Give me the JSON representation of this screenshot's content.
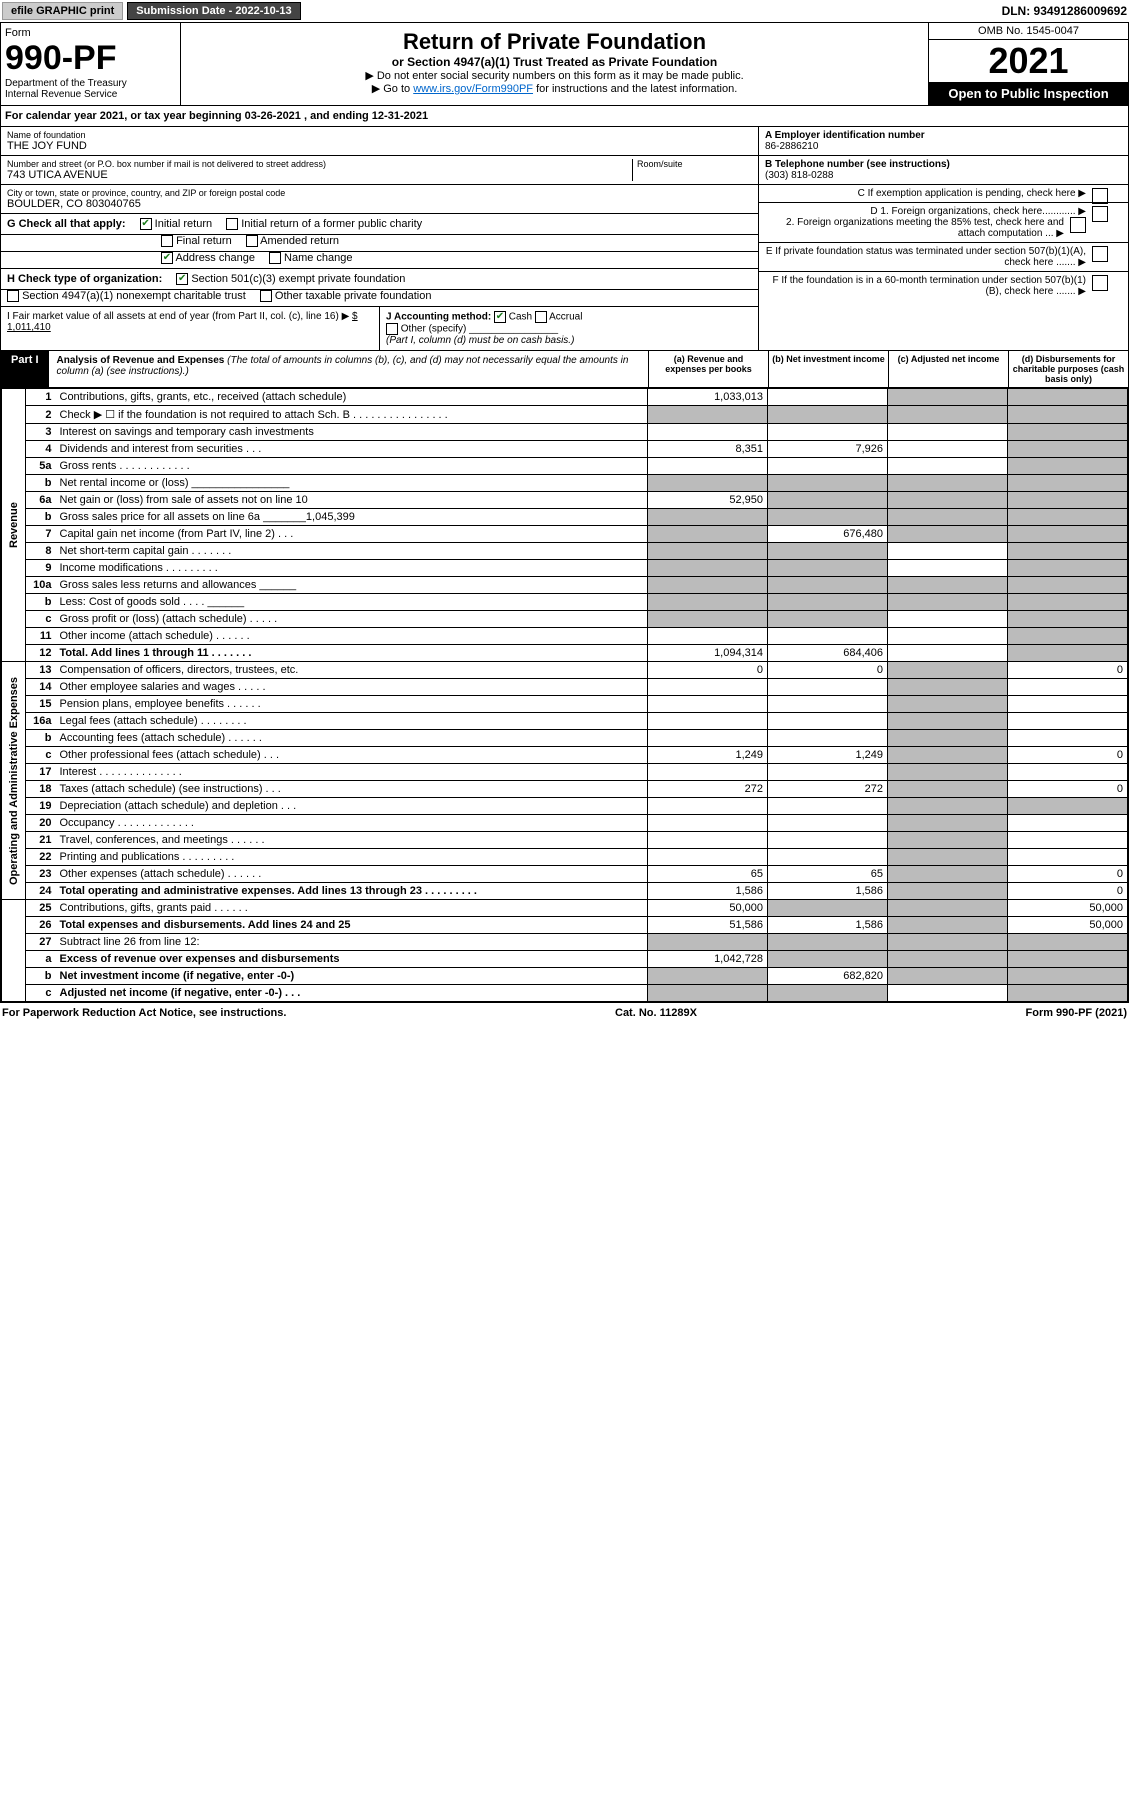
{
  "topbar": {
    "print": "efile GRAPHIC print",
    "subdate_label": "Submission Date - 2022-10-13",
    "dln": "DLN: 93491286009692"
  },
  "header": {
    "form_word": "Form",
    "form_num": "990-PF",
    "dept": "Department of the Treasury",
    "irs": "Internal Revenue Service",
    "title": "Return of Private Foundation",
    "subtitle": "or Section 4947(a)(1) Trust Treated as Private Foundation",
    "instr1": "▶ Do not enter social security numbers on this form as it may be made public.",
    "instr2_pre": "▶ Go to ",
    "instr2_link": "www.irs.gov/Form990PF",
    "instr2_post": " for instructions and the latest information.",
    "omb": "OMB No. 1545-0047",
    "year": "2021",
    "open_pub": "Open to Public Inspection"
  },
  "calendar": "For calendar year 2021, or tax year beginning 03-26-2021                                      , and ending 12-31-2021",
  "info": {
    "name_label": "Name of foundation",
    "name": "THE JOY FUND",
    "addr_label": "Number and street (or P.O. box number if mail is not delivered to street address)",
    "addr": "743 UTICA AVENUE",
    "room_label": "Room/suite",
    "city_label": "City or town, state or province, country, and ZIP or foreign postal code",
    "city": "BOULDER, CO  803040765",
    "A_label": "A Employer identification number",
    "A_val": "86-2886210",
    "B_label": "B Telephone number (see instructions)",
    "B_val": "(303) 818-0288",
    "C_label": "C If exemption application is pending, check here",
    "D1": "D 1. Foreign organizations, check here............",
    "D2": "2. Foreign organizations meeting the 85% test, check here and attach computation ...",
    "E": "E  If private foundation status was terminated under section 507(b)(1)(A), check here .......",
    "F": "F  If the foundation is in a 60-month termination under section 507(b)(1)(B), check here .......",
    "G_label": "G Check all that apply:",
    "G_initial": "Initial return",
    "G_initial_former": "Initial return of a former public charity",
    "G_final": "Final return",
    "G_amended": "Amended return",
    "G_addr": "Address change",
    "G_name": "Name change",
    "H_label": "H Check type of organization:",
    "H_501c3": "Section 501(c)(3) exempt private foundation",
    "H_4947": "Section 4947(a)(1) nonexempt charitable trust",
    "H_other": "Other taxable private foundation",
    "I_label": "I Fair market value of all assets at end of year (from Part II, col. (c), line 16) ▶",
    "I_val": "$  1,011,410",
    "J_label": "J Accounting method:",
    "J_cash": "Cash",
    "J_accrual": "Accrual",
    "J_other": "Other (specify)",
    "J_note": "(Part I, column (d) must be on cash basis.)"
  },
  "part1": {
    "label": "Part I",
    "title": "Analysis of Revenue and Expenses",
    "note": " (The total of amounts in columns (b), (c), and (d) may not necessarily equal the amounts in column (a) (see instructions).)",
    "col_a": "(a)  Revenue and expenses per books",
    "col_b": "(b)  Net investment income",
    "col_c": "(c)  Adjusted net income",
    "col_d": "(d)  Disbursements for charitable purposes (cash basis only)"
  },
  "side_rev": "Revenue",
  "side_exp": "Operating and Administrative Expenses",
  "rows": [
    {
      "n": "1",
      "d": "Contributions, gifts, grants, etc., received (attach schedule)",
      "a": "1,033,013",
      "b": "",
      "c": "sh",
      "dd": "sh"
    },
    {
      "n": "2",
      "d": "Check ▶ ☐ if the foundation is not required to attach Sch. B      .  .  .  .  .  .  .  .  .  .  .  .  .  .  .  .",
      "a": "sh",
      "b": "sh",
      "c": "sh",
      "dd": "sh"
    },
    {
      "n": "3",
      "d": "Interest on savings and temporary cash investments",
      "a": "",
      "b": "",
      "c": "",
      "dd": "sh"
    },
    {
      "n": "4",
      "d": "Dividends and interest from securities     .   .   .",
      "a": "8,351",
      "b": "7,926",
      "c": "",
      "dd": "sh"
    },
    {
      "n": "5a",
      "d": "Gross rents      .   .   .   .   .   .   .   .   .   .   .   .",
      "a": "",
      "b": "",
      "c": "",
      "dd": "sh"
    },
    {
      "n": "b",
      "d": "Net rental income or (loss)    ________________",
      "a": "sh",
      "b": "sh",
      "c": "sh",
      "dd": "sh"
    },
    {
      "n": "6a",
      "d": "Net gain or (loss) from sale of assets not on line 10",
      "a": "52,950",
      "b": "sh",
      "c": "sh",
      "dd": "sh"
    },
    {
      "n": "b",
      "d": "Gross sales price for all assets on line 6a _______1,045,399",
      "a": "sh",
      "b": "sh",
      "c": "sh",
      "dd": "sh"
    },
    {
      "n": "7",
      "d": "Capital gain net income (from Part IV, line 2)   .  .  .",
      "a": "sh",
      "b": "676,480",
      "c": "sh",
      "dd": "sh"
    },
    {
      "n": "8",
      "d": "Net short-term capital gain   .   .   .   .   .   .   .",
      "a": "sh",
      "b": "sh",
      "c": "",
      "dd": "sh"
    },
    {
      "n": "9",
      "d": "Income modifications  .   .   .   .   .   .   .   .   .",
      "a": "sh",
      "b": "sh",
      "c": "",
      "dd": "sh"
    },
    {
      "n": "10a",
      "d": "Gross sales less returns and allowances   ______",
      "a": "sh",
      "b": "sh",
      "c": "sh",
      "dd": "sh"
    },
    {
      "n": "b",
      "d": "Less: Cost of goods sold    .   .   .   .   ______",
      "a": "sh",
      "b": "sh",
      "c": "sh",
      "dd": "sh"
    },
    {
      "n": "c",
      "d": "Gross profit or (loss) (attach schedule)    .   .   .   .   .",
      "a": "sh",
      "b": "sh",
      "c": "",
      "dd": "sh"
    },
    {
      "n": "11",
      "d": "Other income (attach schedule)   .   .   .   .   .   .",
      "a": "",
      "b": "",
      "c": "",
      "dd": "sh"
    },
    {
      "n": "12",
      "d": "Total. Add lines 1 through 11   .   .   .   .   .   .   .",
      "a": "1,094,314",
      "b": "684,406",
      "c": "",
      "dd": "sh",
      "bold": true
    },
    {
      "n": "13",
      "d": "Compensation of officers, directors, trustees, etc.",
      "a": "0",
      "b": "0",
      "c": "sh",
      "dd": "0"
    },
    {
      "n": "14",
      "d": "Other employee salaries and wages   .   .   .   .   .",
      "a": "",
      "b": "",
      "c": "sh",
      "dd": ""
    },
    {
      "n": "15",
      "d": "Pension plans, employee benefits  .   .   .   .   .   .",
      "a": "",
      "b": "",
      "c": "sh",
      "dd": ""
    },
    {
      "n": "16a",
      "d": "Legal fees (attach schedule)  .   .   .   .   .   .   .   .",
      "a": "",
      "b": "",
      "c": "sh",
      "dd": ""
    },
    {
      "n": "b",
      "d": "Accounting fees (attach schedule)  .   .   .   .   .   .",
      "a": "",
      "b": "",
      "c": "sh",
      "dd": ""
    },
    {
      "n": "c",
      "d": "Other professional fees (attach schedule)   .   .   .",
      "a": "1,249",
      "b": "1,249",
      "c": "sh",
      "dd": "0"
    },
    {
      "n": "17",
      "d": "Interest  .   .   .   .   .   .   .   .   .   .   .   .   .   .",
      "a": "",
      "b": "",
      "c": "sh",
      "dd": ""
    },
    {
      "n": "18",
      "d": "Taxes (attach schedule) (see instructions)   .   .   .",
      "a": "272",
      "b": "272",
      "c": "sh",
      "dd": "0"
    },
    {
      "n": "19",
      "d": "Depreciation (attach schedule) and depletion   .   .   .",
      "a": "",
      "b": "",
      "c": "sh",
      "dd": "sh"
    },
    {
      "n": "20",
      "d": "Occupancy  .   .   .   .   .   .   .   .   .   .   .   .   .",
      "a": "",
      "b": "",
      "c": "sh",
      "dd": ""
    },
    {
      "n": "21",
      "d": "Travel, conferences, and meetings  .   .   .   .   .   .",
      "a": "",
      "b": "",
      "c": "sh",
      "dd": ""
    },
    {
      "n": "22",
      "d": "Printing and publications  .   .   .   .   .   .   .   .   .",
      "a": "",
      "b": "",
      "c": "sh",
      "dd": ""
    },
    {
      "n": "23",
      "d": "Other expenses (attach schedule)  .   .   .   .   .   .",
      "a": "65",
      "b": "65",
      "c": "sh",
      "dd": "0"
    },
    {
      "n": "24",
      "d": "Total operating and administrative expenses. Add lines 13 through 23   .   .   .   .   .   .   .   .   .",
      "a": "1,586",
      "b": "1,586",
      "c": "sh",
      "dd": "0",
      "bold": true
    },
    {
      "n": "25",
      "d": "Contributions, gifts, grants paid    .   .   .   .   .   .",
      "a": "50,000",
      "b": "sh",
      "c": "sh",
      "dd": "50,000"
    },
    {
      "n": "26",
      "d": "Total expenses and disbursements. Add lines 24 and 25",
      "a": "51,586",
      "b": "1,586",
      "c": "sh",
      "dd": "50,000",
      "bold": true
    },
    {
      "n": "27",
      "d": "Subtract line 26 from line 12:",
      "a": "sh",
      "b": "sh",
      "c": "sh",
      "dd": "sh"
    },
    {
      "n": "a",
      "d": "Excess of revenue over expenses and disbursements",
      "a": "1,042,728",
      "b": "sh",
      "c": "sh",
      "dd": "sh",
      "bold": true
    },
    {
      "n": "b",
      "d": "Net investment income (if negative, enter -0-)",
      "a": "sh",
      "b": "682,820",
      "c": "sh",
      "dd": "sh",
      "bold": true
    },
    {
      "n": "c",
      "d": "Adjusted net income (if negative, enter -0-)  .   .   .",
      "a": "sh",
      "b": "sh",
      "c": "",
      "dd": "sh",
      "bold": true
    }
  ],
  "footer": {
    "left": "For Paperwork Reduction Act Notice, see instructions.",
    "mid": "Cat. No. 11289X",
    "right": "Form 990-PF (2021)"
  }
}
